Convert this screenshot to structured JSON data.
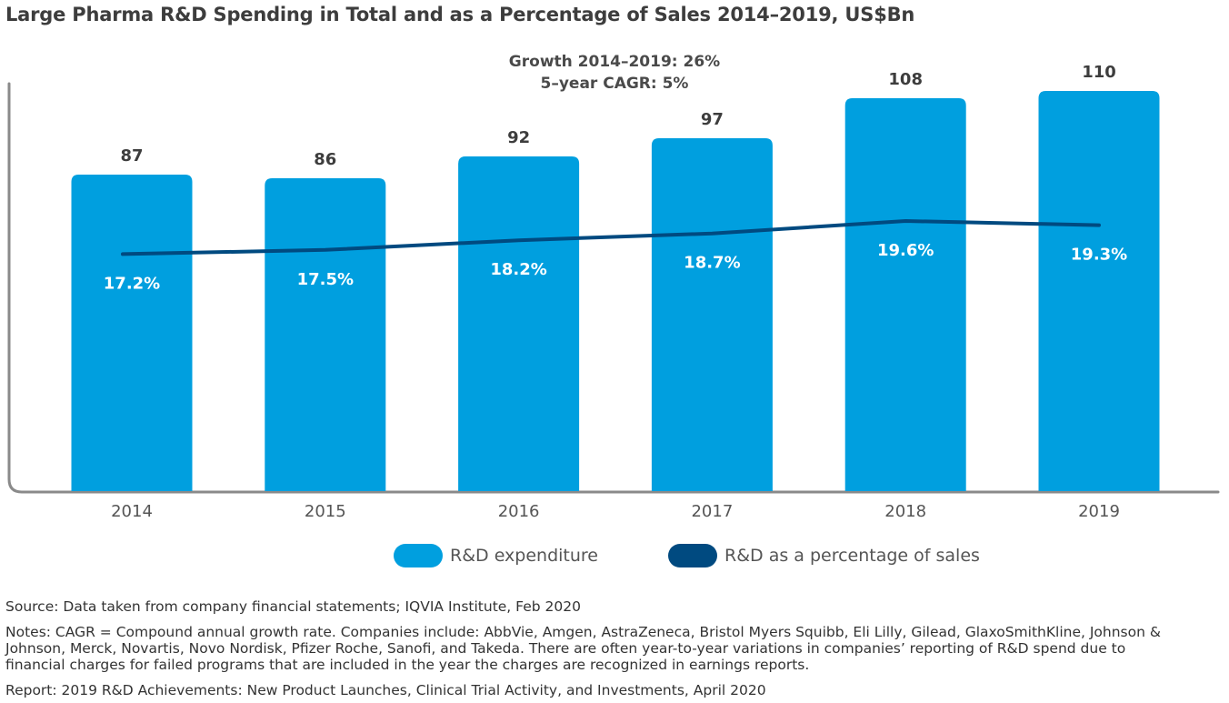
{
  "title": "Large Pharma R&D Spending in Total and as a Percentage of Sales 2014–2019, US$Bn",
  "annotation": {
    "line1": "Growth 2014–2019: 26%",
    "line2": "5–year CAGR: 5%"
  },
  "colors": {
    "bar": "#009fdf",
    "line": "#004a80",
    "axis": "#8a8a8a"
  },
  "chart_data": {
    "type": "bar",
    "categories": [
      "2014",
      "2015",
      "2016",
      "2017",
      "2018",
      "2019"
    ],
    "series": [
      {
        "name": "R&D expenditure",
        "kind": "bar",
        "values": [
          87,
          86,
          92,
          97,
          108,
          110
        ],
        "labels": [
          "87",
          "86",
          "92",
          "97",
          "108",
          "110"
        ]
      },
      {
        "name": "R&D as a percentage of sales",
        "kind": "line",
        "values": [
          17.2,
          17.5,
          18.2,
          18.7,
          19.6,
          19.3
        ],
        "labels": [
          "17.2%",
          "17.5%",
          "18.2%",
          "18.7%",
          "19.6%",
          "19.3%"
        ]
      }
    ],
    "ylim": [
      0,
      125
    ],
    "line_ylim": [
      0,
      33
    ],
    "xlabel": "",
    "ylabel": "",
    "legend": [
      "R&D expenditure",
      "R&D as a percentage of sales"
    ]
  },
  "legend": {
    "bar_label": "R&D expenditure",
    "line_label": "R&D as a percentage of sales"
  },
  "footer": {
    "source": "Source: Data taken from company financial statements; IQVIA Institute, Feb 2020",
    "notes_1": "Notes: CAGR = Compound annual growth rate. Companies include: AbbVie, Amgen, AstraZeneca, Bristol Myers Squibb, Eli Lilly, Gilead, GlaxoSmithKline, Johnson &",
    "notes_2": "Johnson, Merck, Novartis, Novo Nordisk, Pfizer Roche, Sanofi, and Takeda. There are often year-to-year variations in companies’ reporting of R&D spend due to",
    "notes_3": "financial charges for failed programs that are included in the year the charges are recognized in earnings reports.",
    "report": "Report: 2019 R&D Achievements: New Product Launches, Clinical Trial Activity, and Investments, April 2020"
  }
}
